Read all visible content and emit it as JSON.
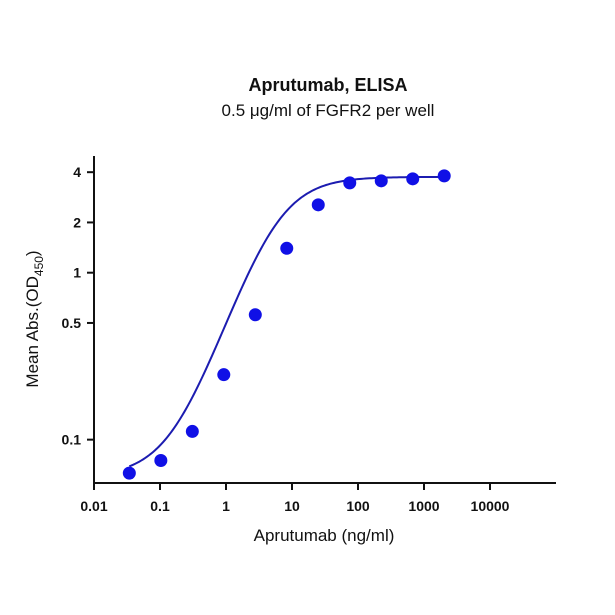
{
  "chart_data": {
    "type": "scatter",
    "title": "Aprutumab, ELISA",
    "subtitle": "0.5 μg/ml of FGFR2 per well",
    "xlabel": "Aprutumab (ng/ml)",
    "ylabel_main": "Mean Abs.(OD",
    "ylabel_sub": "450",
    "ylabel_close": ")",
    "x_scale": "log",
    "y_scale": "log",
    "xlim": [
      0.01,
      100000
    ],
    "ylim": [
      0.055,
      5
    ],
    "x_ticks": [
      {
        "value": 0.01,
        "label": "0.01"
      },
      {
        "value": 0.1,
        "label": "0.1"
      },
      {
        "value": 1,
        "label": "1"
      },
      {
        "value": 10,
        "label": "10"
      },
      {
        "value": 100,
        "label": "100"
      },
      {
        "value": 1000,
        "label": "1000"
      },
      {
        "value": 10000,
        "label": "10000"
      }
    ],
    "y_ticks": [
      {
        "value": 0.1,
        "label": "0.1"
      },
      {
        "value": 0.5,
        "label": "0.5"
      },
      {
        "value": 1,
        "label": "1"
      },
      {
        "value": 2,
        "label": "2"
      },
      {
        "value": 4,
        "label": "4"
      }
    ],
    "grid": false,
    "series": [
      {
        "color": "#1010e6",
        "x": [
          0.0343,
          0.103,
          0.309,
          0.926,
          2.78,
          8.33,
          25,
          75,
          225,
          675,
          2025
        ],
        "y": [
          0.063,
          0.075,
          0.112,
          0.245,
          0.56,
          1.4,
          2.55,
          3.45,
          3.55,
          3.65,
          3.8
        ]
      }
    ],
    "fit_curve": {
      "color": "#1c1cb0",
      "model": "4PL",
      "bottom": 0.06,
      "top": 3.75,
      "ec50": 5.5,
      "hill": 1.18,
      "x_range": [
        0.0343,
        2025
      ]
    }
  }
}
